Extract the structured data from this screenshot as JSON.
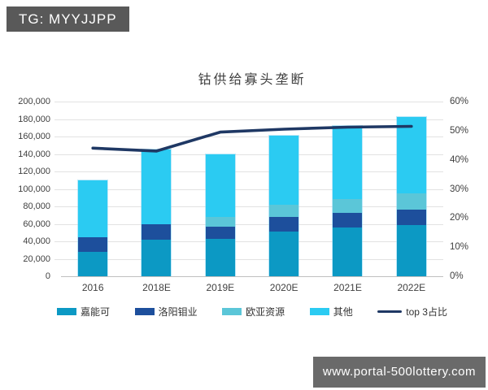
{
  "badge": {
    "text": "TG: MYYJJPP"
  },
  "watermark": {
    "text": "www.portal-500lottery.com"
  },
  "chart_data": {
    "type": "bar",
    "subtype": "stacked-bars-with-line-overlay",
    "title": "钴供给寡头垄断",
    "categories": [
      "2016",
      "2018E",
      "2019E",
      "2020E",
      "2021E",
      "2022E"
    ],
    "series": [
      {
        "name": "嘉能可",
        "type": "bar",
        "color": "#0C99C4",
        "values": [
          28000,
          42000,
          43000,
          51000,
          56000,
          59000
        ]
      },
      {
        "name": "洛阳钼业",
        "type": "bar",
        "color": "#1D4F9C",
        "values": [
          17000,
          18000,
          14000,
          17000,
          17000,
          17000
        ]
      },
      {
        "name": "欧亚资源",
        "type": "bar",
        "color": "#5BC6D8",
        "values": [
          0,
          0,
          11000,
          14000,
          15000,
          19000
        ]
      },
      {
        "name": "其他",
        "type": "bar",
        "color": "#2BCBF2",
        "values": [
          65000,
          85000,
          72000,
          79000,
          84000,
          87000
        ]
      },
      {
        "name": "top 3占比",
        "type": "line",
        "color": "#1F3864",
        "axis": "right",
        "values": [
          44,
          43,
          49.5,
          50.5,
          51.2,
          51.5
        ]
      }
    ],
    "bar_totals": [
      110000,
      145000,
      140000,
      161000,
      172000,
      182000
    ],
    "left_axis": {
      "min": 0,
      "max": 200000,
      "step": 20000,
      "ticks": [
        "200,000",
        "180,000",
        "160,000",
        "140,000",
        "120,000",
        "100,000",
        "80,000",
        "60,000",
        "40,000",
        "20,000",
        "0"
      ]
    },
    "right_axis": {
      "min": 0,
      "max": 60,
      "step": 10,
      "ticks": [
        "60%",
        "50%",
        "40%",
        "30%",
        "20%",
        "10%",
        "0%"
      ]
    },
    "grid": true,
    "legend_position": "bottom",
    "colors": {
      "gridline": "#e2e2e2",
      "axis_line": "#bfbfbf",
      "text": "#3f3f3f"
    }
  }
}
